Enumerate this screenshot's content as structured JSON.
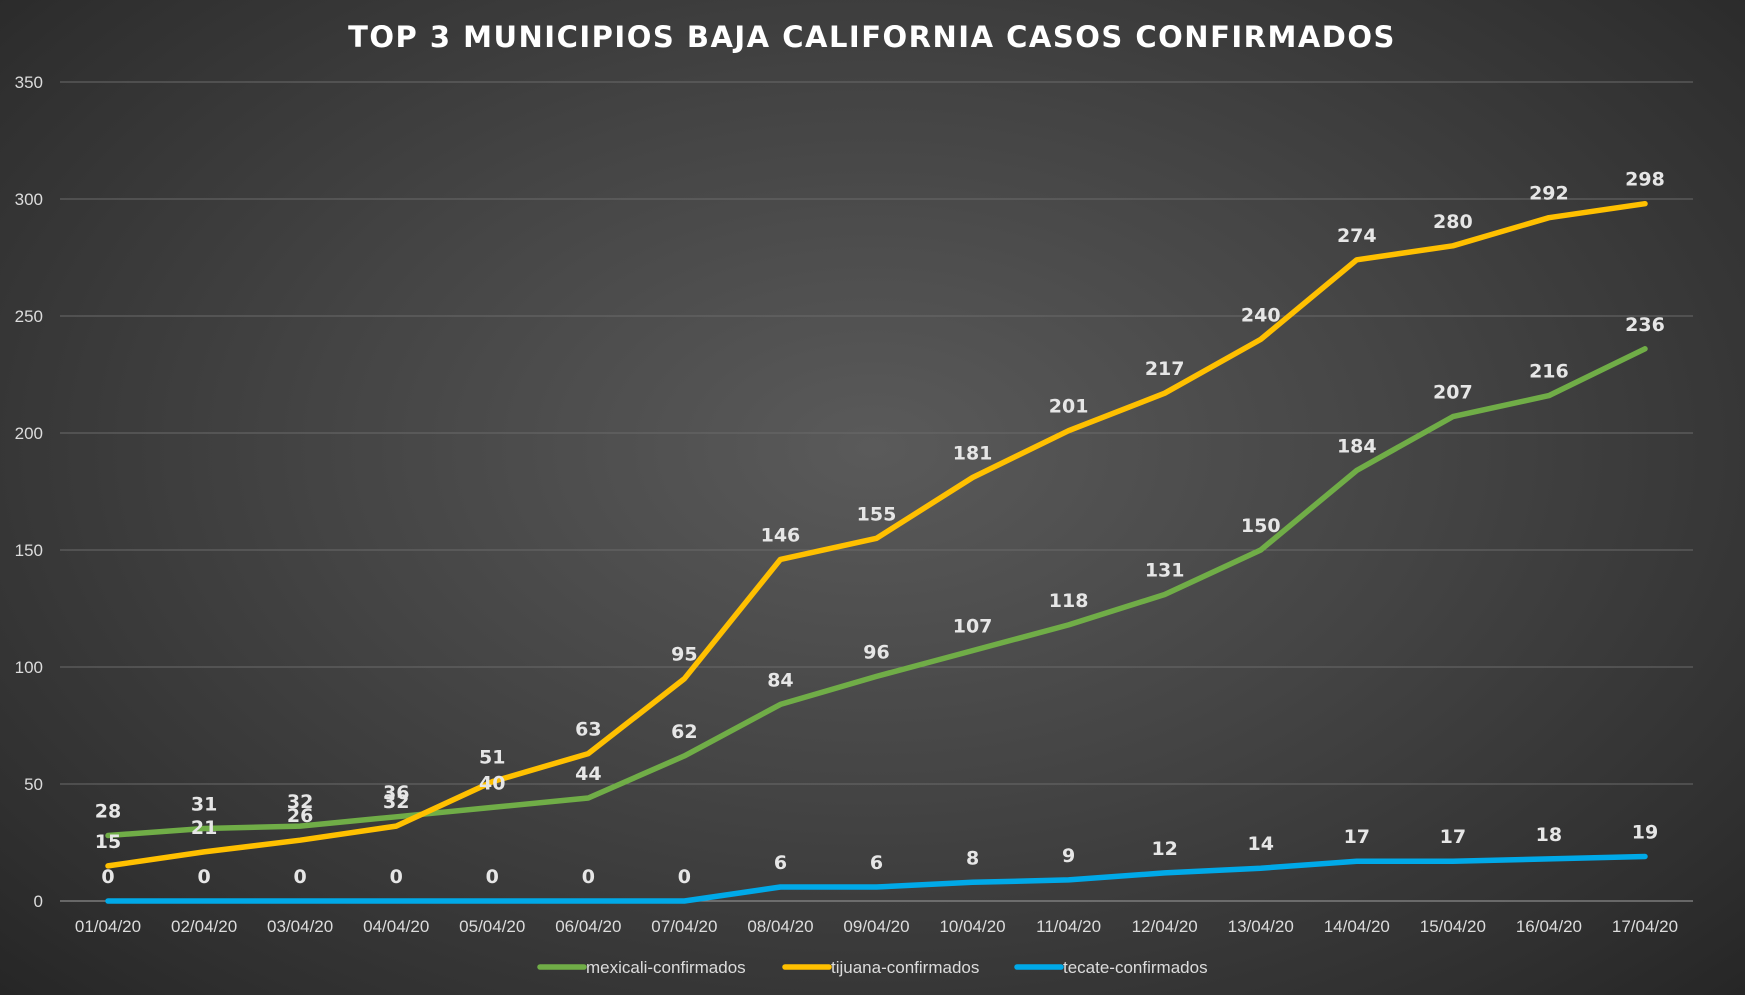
{
  "chart_data": {
    "type": "line",
    "title": "TOP 3 MUNICIPIOS BAJA CALIFORNIA CASOS CONFIRMADOS",
    "xlabel": "",
    "ylabel": "",
    "ylim": [
      0,
      350
    ],
    "yticks": [
      0,
      50,
      100,
      150,
      200,
      250,
      300,
      350
    ],
    "grid": true,
    "legend_position": "bottom",
    "categories": [
      "01/04/20",
      "02/04/20",
      "03/04/20",
      "04/04/20",
      "05/04/20",
      "06/04/20",
      "07/04/20",
      "08/04/20",
      "09/04/20",
      "10/04/20",
      "11/04/20",
      "12/04/20",
      "13/04/20",
      "14/04/20",
      "15/04/20",
      "16/04/20",
      "17/04/20"
    ],
    "series": [
      {
        "name": "mexicali-confirmados",
        "color": "#70ad47",
        "values": [
          28,
          31,
          32,
          36,
          40,
          44,
          62,
          84,
          96,
          107,
          118,
          131,
          150,
          184,
          207,
          216,
          236
        ]
      },
      {
        "name": "tijuana-confirmados",
        "color": "#ffc000",
        "values": [
          15,
          21,
          26,
          32,
          51,
          63,
          95,
          146,
          155,
          181,
          201,
          217,
          240,
          274,
          280,
          292,
          298
        ]
      },
      {
        "name": "tecate-confirmados",
        "color": "#00a9e8",
        "values": [
          0,
          0,
          0,
          0,
          0,
          0,
          0,
          6,
          6,
          8,
          9,
          12,
          14,
          17,
          17,
          18,
          19
        ]
      }
    ]
  }
}
